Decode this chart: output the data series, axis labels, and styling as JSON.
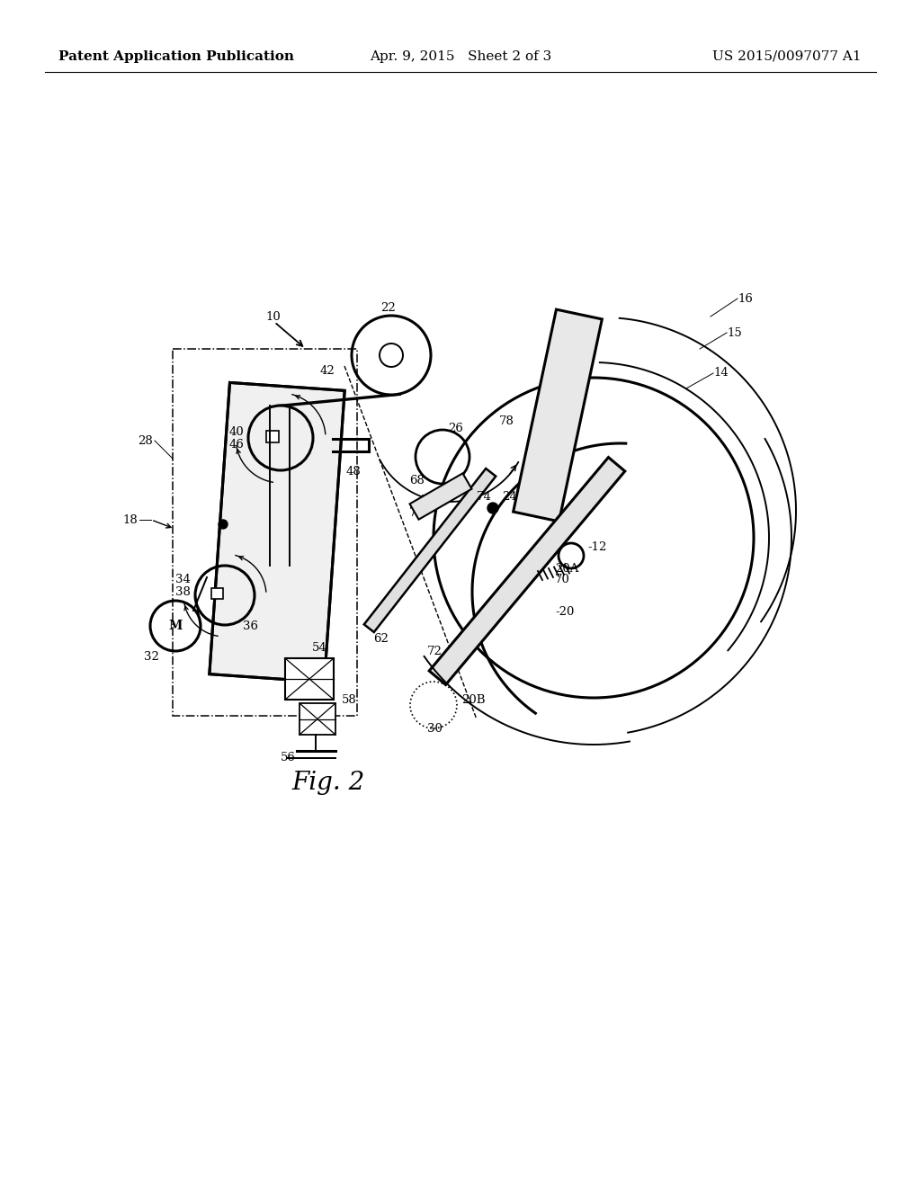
{
  "title_left": "Patent Application Publication",
  "title_center": "Apr. 9, 2015   Sheet 2 of 3",
  "title_right": "US 2015/0097077 A1",
  "fig_label": "Fig. 2",
  "bg_color": "#ffffff",
  "line_color": "#000000",
  "header_fontsize": 11,
  "fig_label_fontsize": 20
}
